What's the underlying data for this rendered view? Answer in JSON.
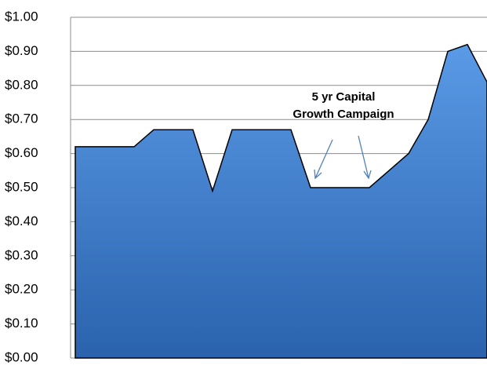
{
  "chart_data": {
    "type": "area",
    "categories": [
      null,
      null,
      null,
      null,
      null,
      null,
      null,
      null,
      null,
      null,
      null,
      null,
      null,
      null,
      null,
      null,
      null,
      null,
      null,
      null,
      null,
      null
    ],
    "values": [
      0.62,
      0.62,
      0.62,
      0.62,
      0.67,
      0.67,
      0.67,
      0.49,
      0.67,
      0.67,
      0.67,
      0.67,
      0.5,
      0.5,
      0.5,
      0.5,
      0.55,
      0.6,
      0.7,
      0.9,
      0.92,
      0.81
    ],
    "color": "#3f7fd0",
    "ylim": [
      0,
      1
    ],
    "yticks": [
      {
        "value": 0,
        "label": "$0.00"
      },
      {
        "value": 0.1,
        "label": "$0.10"
      },
      {
        "value": 0.2,
        "label": "$0.20"
      },
      {
        "value": 0.3,
        "label": "$0.30"
      },
      {
        "value": 0.4,
        "label": "$0.40"
      },
      {
        "value": 0.5,
        "label": "$0.50"
      },
      {
        "value": 0.6,
        "label": "$0.60"
      },
      {
        "value": 0.7,
        "label": "$0.70"
      },
      {
        "value": 0.8,
        "label": "$0.80"
      },
      {
        "value": 0.9,
        "label": "$0.90"
      },
      {
        "value": 1,
        "label": "$1.00"
      }
    ],
    "grid": true,
    "annotation": [
      "5 yr Capital",
      "Growth Campaign"
    ]
  }
}
